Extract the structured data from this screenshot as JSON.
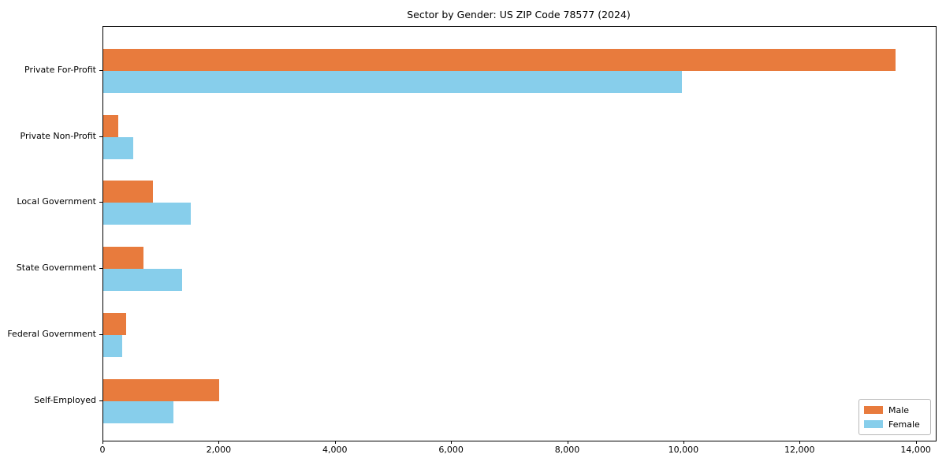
{
  "title": "Sector by Gender: US ZIP Code 78577 (2024)",
  "chart_data": {
    "type": "bar",
    "orientation": "horizontal",
    "title": "Sector by Gender: US ZIP Code 78577 (2024)",
    "xlabel": "",
    "ylabel": "",
    "categories": [
      "Private For-Profit",
      "Private Non-Profit",
      "Local Government",
      "State Government",
      "Federal Government",
      "Self-Employed"
    ],
    "series": [
      {
        "name": "Male",
        "color": "#E87B3D",
        "values": [
          13640,
          260,
          860,
          695,
          395,
          2000
        ]
      },
      {
        "name": "Female",
        "color": "#87CEEB",
        "values": [
          9960,
          520,
          1510,
          1360,
          325,
          1210
        ]
      }
    ],
    "xlim": [
      0,
      14330
    ],
    "xticks": [
      0,
      2000,
      4000,
      6000,
      8000,
      10000,
      12000,
      14000
    ],
    "xtick_labels": [
      "0",
      "2,000",
      "4,000",
      "6,000",
      "8,000",
      "10,000",
      "12,000",
      "14,000"
    ],
    "grid": false,
    "legend_position": "lower right"
  },
  "colors": {
    "axis": "#000000",
    "background": "#ffffff",
    "legend_border": "#b7b7b7"
  }
}
